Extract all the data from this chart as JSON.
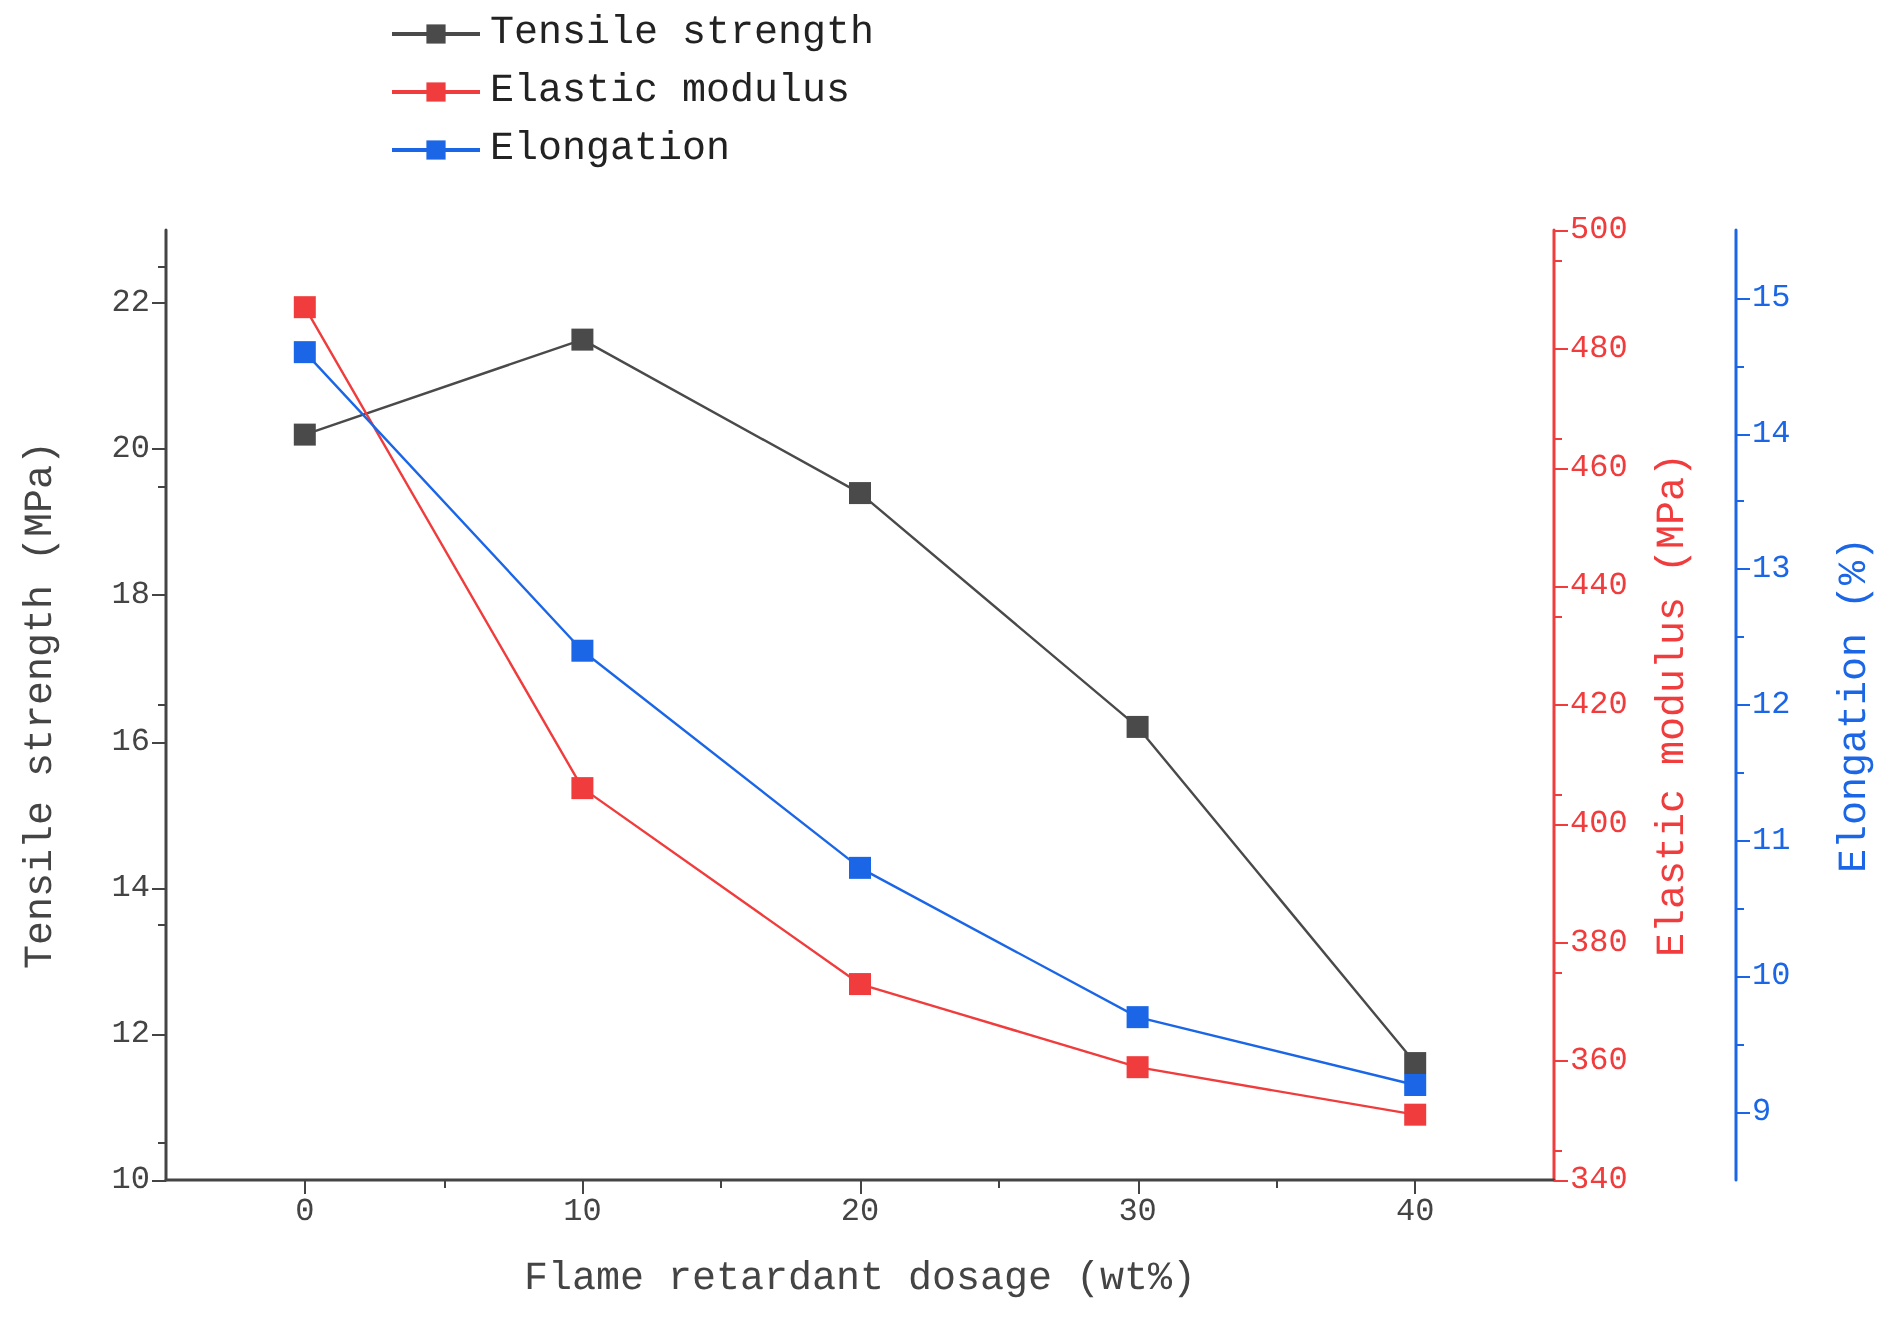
{
  "chart_data": {
    "type": "line",
    "xlabel": "Flame retardant dosage (wt%)",
    "ylabel": "Tensile strength (MPa)",
    "y2label": "Elastic modulus (MPa)",
    "y3label": "Elongation (%)",
    "x": [
      0,
      10,
      20,
      30,
      40
    ],
    "series": [
      {
        "name": "Tensile strength",
        "color": "#4a4a4a",
        "values": [
          20.2,
          21.5,
          19.4,
          16.2,
          11.6
        ]
      },
      {
        "name": "Elastic modulus",
        "color": "#f03c3c",
        "axis": "y2",
        "values": [
          487,
          406,
          373,
          359,
          351
        ]
      },
      {
        "name": "Elongation",
        "color": "#1a66e6",
        "axis": "y3",
        "values": [
          14.6,
          12.4,
          10.8,
          9.7,
          9.2
        ]
      }
    ],
    "xlim": [
      -5,
      45
    ],
    "xticks": [
      0,
      10,
      20,
      30,
      40
    ],
    "ylim": [
      10,
      23
    ],
    "yticks": [
      10,
      12,
      14,
      16,
      18,
      20,
      22
    ],
    "y2lim": [
      340,
      500
    ],
    "y2ticks": [
      340,
      360,
      380,
      400,
      420,
      440,
      460,
      480,
      500
    ],
    "y3lim": [
      8.5,
      15.5
    ],
    "y3ticks": [
      9,
      10,
      11,
      12,
      13,
      14,
      15
    ],
    "marker": "square",
    "line_style": "solid",
    "grid": false,
    "legend": "top left"
  }
}
